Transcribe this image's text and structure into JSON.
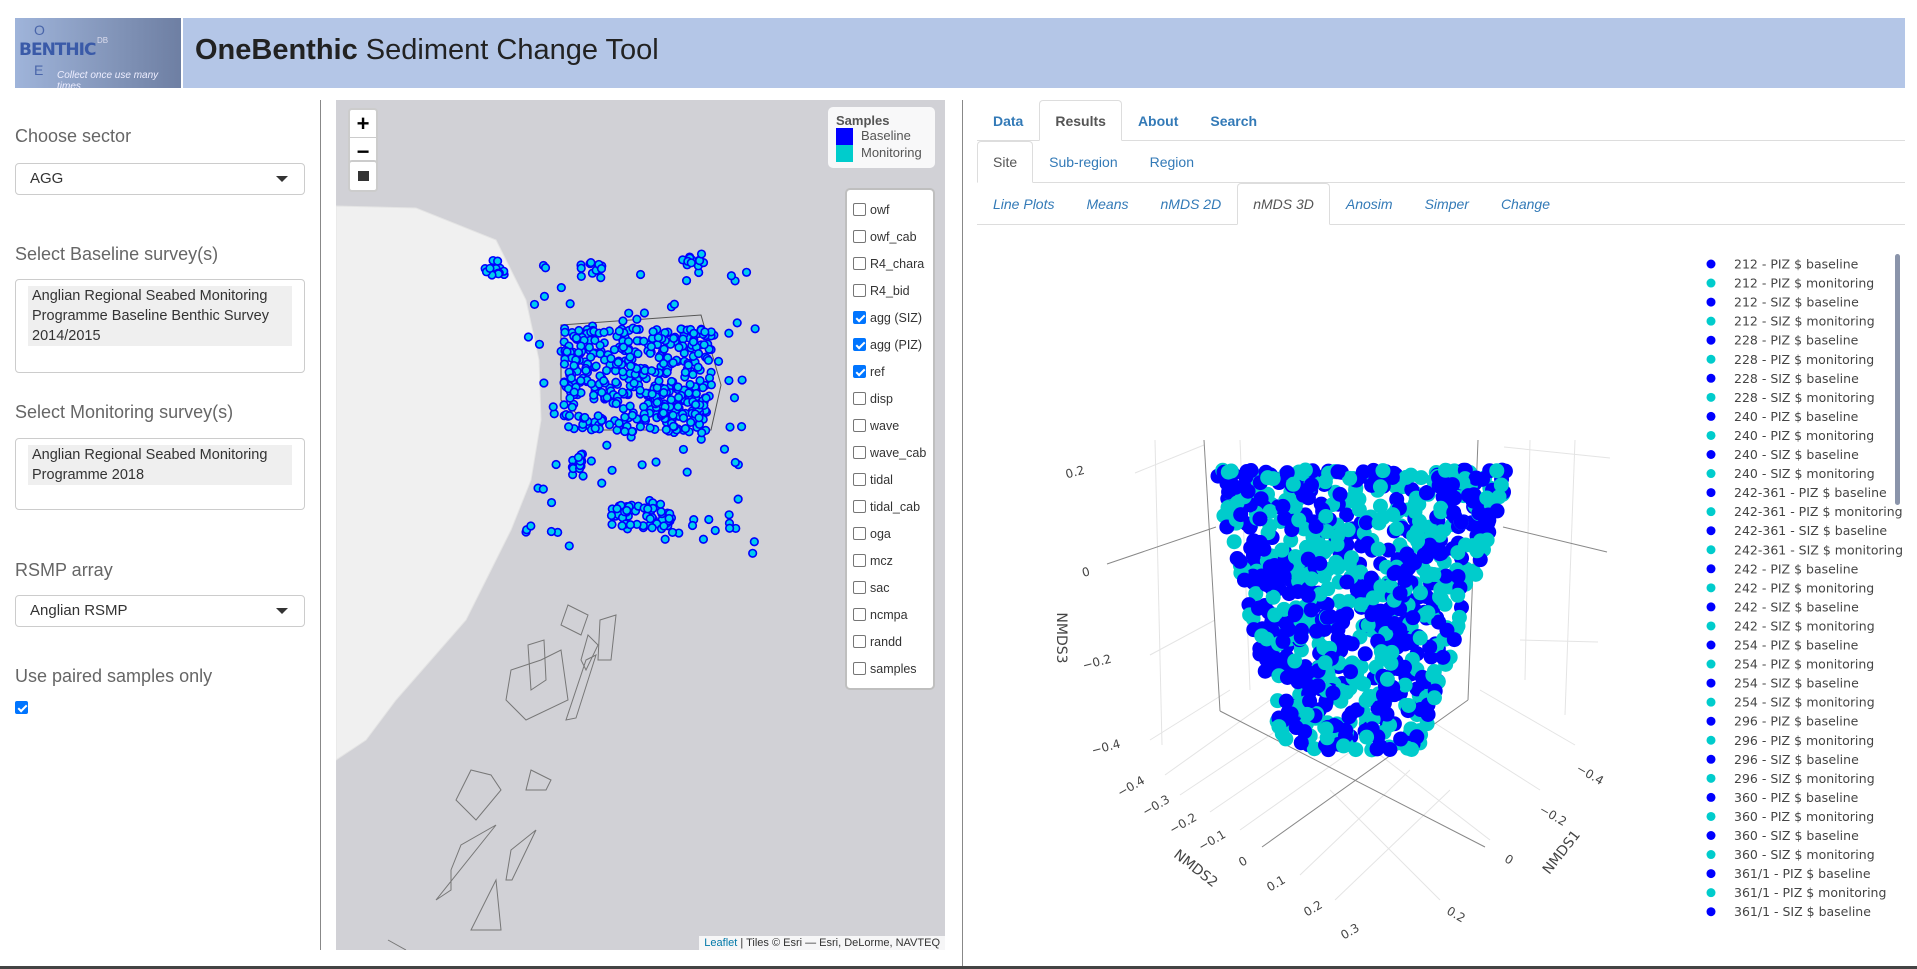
{
  "header": {
    "logo_text": "BENTHIC",
    "logo_letters": [
      "O",
      "E"
    ],
    "logo_sup": "DB",
    "logo_tagline": "Collect once use many times",
    "title_bold": "OneBenthic",
    "title_rest": " Sediment Change Tool"
  },
  "sidebar": {
    "sector_label": "Choose sector",
    "sector_value": "AGG",
    "baseline_label": "Select Baseline survey(s)",
    "baseline_value": "Anglian Regional Seabed Monitoring Programme Baseline Benthic Survey 2014/2015",
    "monitoring_label": "Select Monitoring survey(s)",
    "monitoring_value": "Anglian Regional Seabed Monitoring Programme 2018",
    "rsmp_label": "RSMP array",
    "rsmp_value": "Anglian RSMP",
    "paired_label": "Use paired samples only",
    "paired_checked": true
  },
  "map": {
    "zoom_in": "+",
    "zoom_out": "−",
    "legend": {
      "title": "Samples",
      "items": [
        {
          "label": "Baseline",
          "color": "#0000ff"
        },
        {
          "label": "Monitoring",
          "color": "#00cccc"
        }
      ]
    },
    "layers": [
      {
        "label": "owf",
        "checked": false
      },
      {
        "label": "owf_cab",
        "checked": false
      },
      {
        "label": "R4_chara",
        "checked": false
      },
      {
        "label": "R4_bid",
        "checked": false
      },
      {
        "label": "agg (SIZ)",
        "checked": true
      },
      {
        "label": "agg (PIZ)",
        "checked": true
      },
      {
        "label": "ref",
        "checked": true
      },
      {
        "label": "disp",
        "checked": false
      },
      {
        "label": "wave",
        "checked": false
      },
      {
        "label": "wave_cab",
        "checked": false
      },
      {
        "label": "tidal",
        "checked": false
      },
      {
        "label": "tidal_cab",
        "checked": false
      },
      {
        "label": "oga",
        "checked": false
      },
      {
        "label": "mcz",
        "checked": false
      },
      {
        "label": "sac",
        "checked": false
      },
      {
        "label": "ncmpa",
        "checked": false
      },
      {
        "label": "randd",
        "checked": false
      },
      {
        "label": "samples",
        "checked": false
      }
    ],
    "attribution_link": "Leaflet",
    "attribution_text": " | Tiles © Esri — Esri, DeLorme, NAVTEQ"
  },
  "tabs": {
    "main": [
      {
        "label": "Data"
      },
      {
        "label": "Results",
        "active": true
      },
      {
        "label": "About"
      },
      {
        "label": "Search"
      }
    ],
    "sub": [
      {
        "label": "Site",
        "active": true
      },
      {
        "label": "Sub-region"
      },
      {
        "label": "Region"
      }
    ],
    "analysis": [
      {
        "label": "Line Plots"
      },
      {
        "label": "Means"
      },
      {
        "label": "nMDS 2D"
      },
      {
        "label": "nMDS 3D",
        "active": true
      },
      {
        "label": "Anosim"
      },
      {
        "label": "Simper"
      },
      {
        "label": "Change"
      }
    ]
  },
  "plot": {
    "colors": {
      "baseline": "#0000ff",
      "monitoring": "#00cccc"
    },
    "axes": {
      "x": {
        "title": "NMDS1",
        "ticks": [
          "−0.4",
          "−0.2",
          "0",
          "0.2"
        ]
      },
      "y": {
        "title": "NMDS2",
        "ticks": [
          "−0.4",
          "−0.3",
          "−0.2",
          "−0.1",
          "0",
          "0.1",
          "0.2",
          "0.3"
        ]
      },
      "z": {
        "title": "NMDS3",
        "ticks": [
          "0.2",
          "0",
          "−0.2",
          "−0.4"
        ]
      }
    },
    "legend": [
      "212 - PIZ $ baseline",
      "212 - PIZ $ monitoring",
      "212 - SIZ $ baseline",
      "212 - SIZ $ monitoring",
      "228 - PIZ $ baseline",
      "228 - PIZ $ monitoring",
      "228 - SIZ $ baseline",
      "228 - SIZ $ monitoring",
      "240 - PIZ $ baseline",
      "240 - PIZ $ monitoring",
      "240 - SIZ $ baseline",
      "240 - SIZ $ monitoring",
      "242-361 - PIZ $ baseline",
      "242-361 - PIZ $ monitoring",
      "242-361 - SIZ $ baseline",
      "242-361 - SIZ $ monitoring",
      "242 - PIZ $ baseline",
      "242 - PIZ $ monitoring",
      "242 - SIZ $ baseline",
      "242 - SIZ $ monitoring",
      "254 - PIZ $ baseline",
      "254 - PIZ $ monitoring",
      "254 - SIZ $ baseline",
      "254 - SIZ $ monitoring",
      "296 - PIZ $ baseline",
      "296 - PIZ $ monitoring",
      "296 - SIZ $ baseline",
      "296 - SIZ $ monitoring",
      "360 - PIZ $ baseline",
      "360 - PIZ $ monitoring",
      "360 - SIZ $ baseline",
      "360 - SIZ $ monitoring",
      "361/1 - PIZ $ baseline",
      "361/1 - PIZ $ monitoring",
      "361/1 - SIZ $ baseline"
    ]
  }
}
